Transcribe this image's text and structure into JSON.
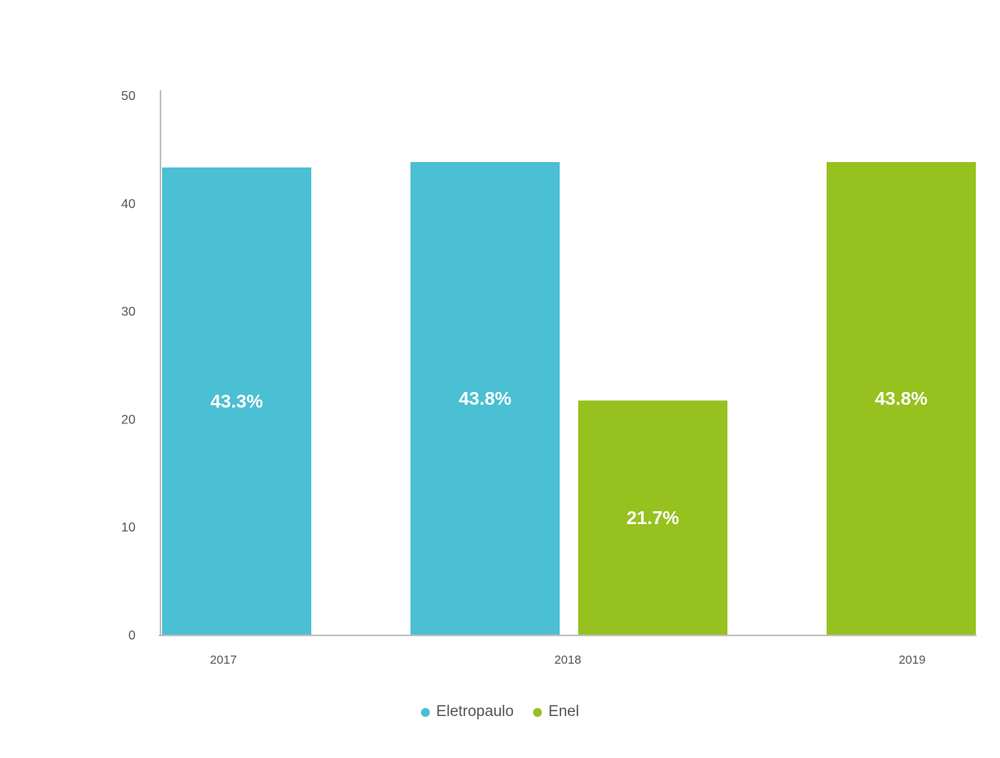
{
  "chart_data": {
    "type": "bar",
    "categories": [
      "2017",
      "2018",
      "2019"
    ],
    "series": [
      {
        "name": "Eletropaulo",
        "color": "#4bbfd3",
        "values": [
          43.3,
          43.8,
          null
        ],
        "labels": [
          "43.3%",
          "43.8%",
          null
        ]
      },
      {
        "name": "Enel",
        "color": "#96c11f",
        "values": [
          null,
          21.7,
          43.8
        ],
        "labels": [
          null,
          "21.7%",
          "43.8%"
        ]
      }
    ],
    "ylim": [
      0,
      50
    ],
    "yticks": [
      "0",
      "10",
      "20",
      "30",
      "40",
      "50"
    ],
    "grid": false,
    "legend_position": "bottom-center"
  }
}
